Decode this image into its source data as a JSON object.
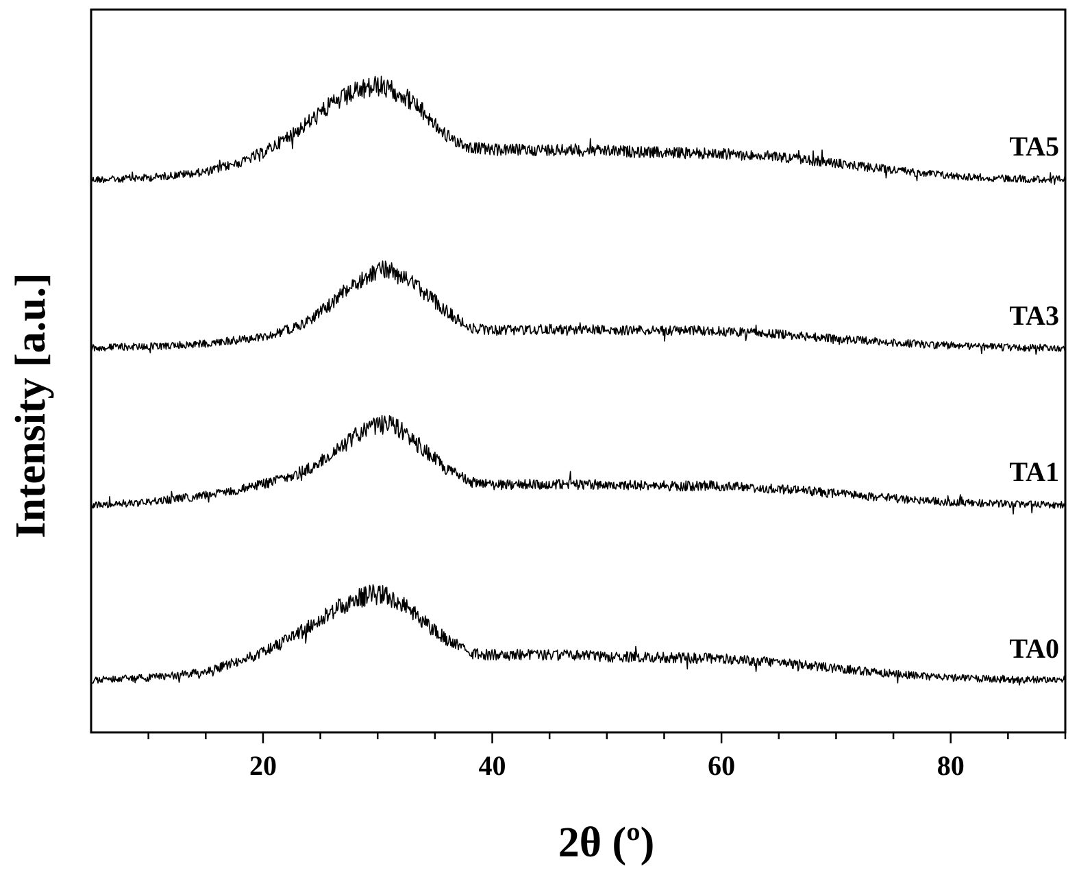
{
  "chart_data": {
    "type": "line",
    "xlabel": "2θ (º)",
    "ylabel": "Intensity [a.u.]",
    "xlim": [
      5,
      90
    ],
    "x_ticks": [
      20,
      40,
      60,
      80
    ],
    "x_minor_step": 5,
    "y_ticks_shown": false,
    "grid": false,
    "legend": "none (labels placed at right end of each trace)",
    "line_color": "#000000",
    "series": [
      {
        "name": "TA5",
        "profile": [
          [
            5,
            0.02
          ],
          [
            10,
            0.04
          ],
          [
            15,
            0.1
          ],
          [
            18,
            0.2
          ],
          [
            20,
            0.3
          ],
          [
            22,
            0.45
          ],
          [
            24,
            0.62
          ],
          [
            26,
            0.8
          ],
          [
            28,
            0.93
          ],
          [
            30,
            1.0
          ],
          [
            32,
            0.93
          ],
          [
            34,
            0.72
          ],
          [
            36,
            0.48
          ],
          [
            38,
            0.36
          ],
          [
            40,
            0.33
          ],
          [
            45,
            0.33
          ],
          [
            50,
            0.32
          ],
          [
            55,
            0.3
          ],
          [
            60,
            0.29
          ],
          [
            65,
            0.26
          ],
          [
            70,
            0.19
          ],
          [
            75,
            0.12
          ],
          [
            80,
            0.06
          ],
          [
            85,
            0.03
          ],
          [
            90,
            0.02
          ]
        ]
      },
      {
        "name": "TA3",
        "profile": [
          [
            5,
            0.02
          ],
          [
            10,
            0.03
          ],
          [
            15,
            0.06
          ],
          [
            20,
            0.13
          ],
          [
            22,
            0.2
          ],
          [
            24,
            0.3
          ],
          [
            26,
            0.48
          ],
          [
            28,
            0.7
          ],
          [
            30,
            0.82
          ],
          [
            31,
            0.84
          ],
          [
            32,
            0.78
          ],
          [
            34,
            0.6
          ],
          [
            36,
            0.4
          ],
          [
            38,
            0.22
          ],
          [
            40,
            0.2
          ],
          [
            45,
            0.21
          ],
          [
            50,
            0.2
          ],
          [
            55,
            0.2
          ],
          [
            60,
            0.19
          ],
          [
            65,
            0.16
          ],
          [
            70,
            0.11
          ],
          [
            75,
            0.07
          ],
          [
            80,
            0.04
          ],
          [
            85,
            0.02
          ],
          [
            90,
            0.01
          ]
        ]
      },
      {
        "name": "TA1",
        "profile": [
          [
            5,
            0.02
          ],
          [
            10,
            0.05
          ],
          [
            15,
            0.12
          ],
          [
            18,
            0.18
          ],
          [
            20,
            0.24
          ],
          [
            22,
            0.3
          ],
          [
            24,
            0.4
          ],
          [
            26,
            0.55
          ],
          [
            28,
            0.74
          ],
          [
            30,
            0.85
          ],
          [
            31,
            0.87
          ],
          [
            32,
            0.8
          ],
          [
            34,
            0.6
          ],
          [
            36,
            0.4
          ],
          [
            38,
            0.26
          ],
          [
            40,
            0.23
          ],
          [
            45,
            0.24
          ],
          [
            50,
            0.23
          ],
          [
            55,
            0.22
          ],
          [
            60,
            0.22
          ],
          [
            65,
            0.19
          ],
          [
            70,
            0.14
          ],
          [
            75,
            0.09
          ],
          [
            80,
            0.05
          ],
          [
            85,
            0.03
          ],
          [
            90,
            0.02
          ]
        ]
      },
      {
        "name": "TA0",
        "profile": [
          [
            5,
            0.02
          ],
          [
            10,
            0.04
          ],
          [
            15,
            0.1
          ],
          [
            18,
            0.22
          ],
          [
            20,
            0.3
          ],
          [
            22,
            0.42
          ],
          [
            24,
            0.57
          ],
          [
            26,
            0.73
          ],
          [
            28,
            0.86
          ],
          [
            30,
            0.92
          ],
          [
            32,
            0.82
          ],
          [
            34,
            0.62
          ],
          [
            36,
            0.44
          ],
          [
            38,
            0.3
          ],
          [
            40,
            0.28
          ],
          [
            45,
            0.28
          ],
          [
            50,
            0.26
          ],
          [
            55,
            0.25
          ],
          [
            60,
            0.24
          ],
          [
            65,
            0.2
          ],
          [
            70,
            0.14
          ],
          [
            75,
            0.08
          ],
          [
            80,
            0.04
          ],
          [
            85,
            0.02
          ],
          [
            90,
            0.02
          ]
        ]
      }
    ]
  }
}
